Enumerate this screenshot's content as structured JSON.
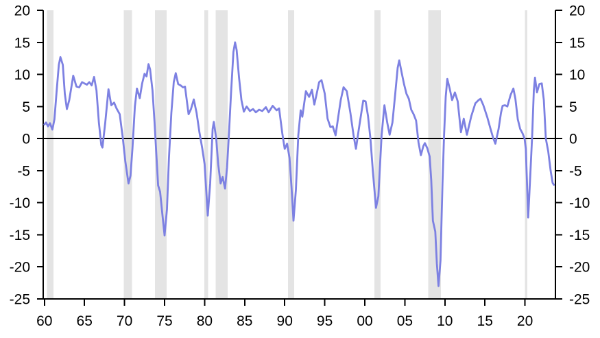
{
  "chart_data": {
    "type": "line",
    "title": "",
    "xlabel": "",
    "ylabel": "",
    "grid": "off",
    "legend": "none",
    "zero_line": true,
    "colors": {
      "line": "#7d81e2",
      "recession_band": "#e4e4e4",
      "axis": "#000000",
      "background": "#ffffff"
    },
    "x_axis": {
      "range": [
        1959.85,
        2023.8
      ],
      "ticks": [
        {
          "value": 1960,
          "label": "60"
        },
        {
          "value": 1965,
          "label": "65"
        },
        {
          "value": 1970,
          "label": "70"
        },
        {
          "value": 1975,
          "label": "75"
        },
        {
          "value": 1980,
          "label": "80"
        },
        {
          "value": 1985,
          "label": "85"
        },
        {
          "value": 1990,
          "label": "90"
        },
        {
          "value": 1995,
          "label": "95"
        },
        {
          "value": 2000,
          "label": "00"
        },
        {
          "value": 2005,
          "label": "05"
        },
        {
          "value": 2010,
          "label": "10"
        },
        {
          "value": 2015,
          "label": "15"
        },
        {
          "value": 2020,
          "label": "20"
        }
      ]
    },
    "y_axis": {
      "range": [
        -25,
        20
      ],
      "sides": [
        "left",
        "right"
      ],
      "ticks": [
        {
          "value": 20,
          "label": "20"
        },
        {
          "value": 15,
          "label": "15"
        },
        {
          "value": 10,
          "label": "10"
        },
        {
          "value": 5,
          "label": "5"
        },
        {
          "value": 0,
          "label": "0"
        },
        {
          "value": -5,
          "label": "-5"
        },
        {
          "value": -10,
          "label": "-10"
        },
        {
          "value": -15,
          "label": "-15"
        },
        {
          "value": -20,
          "label": "-20"
        },
        {
          "value": -25,
          "label": "-25"
        }
      ]
    },
    "recession_bands": [
      [
        1960.3,
        1961.15
      ],
      [
        1969.9,
        1970.95
      ],
      [
        1973.8,
        1975.25
      ],
      [
        1979.95,
        1980.45
      ],
      [
        1981.4,
        1982.9
      ],
      [
        1990.4,
        1991.2
      ],
      [
        2001.2,
        2001.95
      ],
      [
        2007.9,
        2009.5
      ],
      [
        2020.0,
        2020.3
      ]
    ],
    "series": [
      {
        "name": "value-pct-yoy",
        "color": "#7d81e2",
        "points": [
          [
            1960.0,
            2.2
          ],
          [
            1960.2,
            2.5
          ],
          [
            1960.45,
            1.9
          ],
          [
            1960.7,
            2.4
          ],
          [
            1961.0,
            1.4
          ],
          [
            1961.25,
            3.0
          ],
          [
            1961.5,
            7.0
          ],
          [
            1961.8,
            11.5
          ],
          [
            1962.0,
            12.7
          ],
          [
            1962.3,
            11.5
          ],
          [
            1962.55,
            7.0
          ],
          [
            1962.8,
            4.6
          ],
          [
            1963.1,
            6.0
          ],
          [
            1963.6,
            9.8
          ],
          [
            1964.0,
            8.1
          ],
          [
            1964.35,
            8.0
          ],
          [
            1964.7,
            8.8
          ],
          [
            1965.0,
            8.6
          ],
          [
            1965.3,
            8.4
          ],
          [
            1965.6,
            8.8
          ],
          [
            1965.9,
            8.3
          ],
          [
            1966.2,
            9.6
          ],
          [
            1966.5,
            7.5
          ],
          [
            1966.8,
            2.5
          ],
          [
            1967.1,
            -1.0
          ],
          [
            1967.25,
            -1.4
          ],
          [
            1967.6,
            2.5
          ],
          [
            1968.0,
            7.7
          ],
          [
            1968.35,
            5.2
          ],
          [
            1968.7,
            5.6
          ],
          [
            1969.0,
            4.7
          ],
          [
            1969.4,
            3.8
          ],
          [
            1969.8,
            0.0
          ],
          [
            1970.1,
            -3.5
          ],
          [
            1970.5,
            -7.0
          ],
          [
            1970.75,
            -5.8
          ],
          [
            1971.0,
            -1.5
          ],
          [
            1971.3,
            5.0
          ],
          [
            1971.55,
            7.8
          ],
          [
            1971.9,
            6.3
          ],
          [
            1972.2,
            8.6
          ],
          [
            1972.5,
            10.1
          ],
          [
            1972.75,
            9.7
          ],
          [
            1973.0,
            11.6
          ],
          [
            1973.2,
            10.8
          ],
          [
            1973.5,
            7.5
          ],
          [
            1973.75,
            2.5
          ],
          [
            1974.0,
            -3.0
          ],
          [
            1974.2,
            -7.3
          ],
          [
            1974.45,
            -8.3
          ],
          [
            1974.7,
            -11.5
          ],
          [
            1975.0,
            -15.1
          ],
          [
            1975.3,
            -11.0
          ],
          [
            1975.55,
            -3.0
          ],
          [
            1975.85,
            4.0
          ],
          [
            1976.15,
            8.8
          ],
          [
            1976.4,
            10.2
          ],
          [
            1976.7,
            8.5
          ],
          [
            1977.0,
            8.3
          ],
          [
            1977.3,
            8.0
          ],
          [
            1977.55,
            8.1
          ],
          [
            1978.0,
            3.8
          ],
          [
            1978.3,
            4.6
          ],
          [
            1978.65,
            6.1
          ],
          [
            1979.0,
            4.0
          ],
          [
            1979.35,
            1.0
          ],
          [
            1979.7,
            -1.5
          ],
          [
            1980.0,
            -4.0
          ],
          [
            1980.4,
            -12.0
          ],
          [
            1980.7,
            -7.0
          ],
          [
            1981.0,
            1.5
          ],
          [
            1981.15,
            2.6
          ],
          [
            1981.45,
            0.0
          ],
          [
            1981.7,
            -4.0
          ],
          [
            1982.0,
            -7.0
          ],
          [
            1982.25,
            -6.0
          ],
          [
            1982.55,
            -7.8
          ],
          [
            1982.8,
            -4.5
          ],
          [
            1983.05,
            1.0
          ],
          [
            1983.3,
            7.0
          ],
          [
            1983.6,
            13.5
          ],
          [
            1983.8,
            15.0
          ],
          [
            1984.0,
            13.8
          ],
          [
            1984.3,
            9.5
          ],
          [
            1984.6,
            6.0
          ],
          [
            1984.9,
            4.2
          ],
          [
            1985.25,
            5.0
          ],
          [
            1985.65,
            4.3
          ],
          [
            1986.05,
            4.6
          ],
          [
            1986.4,
            4.1
          ],
          [
            1986.8,
            4.5
          ],
          [
            1987.2,
            4.3
          ],
          [
            1987.65,
            4.9
          ],
          [
            1988.0,
            4.1
          ],
          [
            1988.5,
            5.1
          ],
          [
            1989.0,
            4.4
          ],
          [
            1989.3,
            4.7
          ],
          [
            1989.7,
            0.8
          ],
          [
            1990.0,
            -1.6
          ],
          [
            1990.3,
            -0.8
          ],
          [
            1990.6,
            -3.0
          ],
          [
            1990.85,
            -7.5
          ],
          [
            1991.1,
            -12.8
          ],
          [
            1991.4,
            -8.0
          ],
          [
            1991.7,
            0.5
          ],
          [
            1992.0,
            4.4
          ],
          [
            1992.2,
            3.4
          ],
          [
            1992.65,
            7.4
          ],
          [
            1993.05,
            6.5
          ],
          [
            1993.4,
            7.6
          ],
          [
            1993.7,
            5.3
          ],
          [
            1994.0,
            7.0
          ],
          [
            1994.3,
            8.8
          ],
          [
            1994.6,
            9.1
          ],
          [
            1995.0,
            7.0
          ],
          [
            1995.35,
            3.1
          ],
          [
            1995.7,
            1.8
          ],
          [
            1996.0,
            1.9
          ],
          [
            1996.35,
            0.5
          ],
          [
            1996.7,
            3.5
          ],
          [
            1997.0,
            6.0
          ],
          [
            1997.35,
            8.0
          ],
          [
            1997.75,
            7.4
          ],
          [
            1998.2,
            4.0
          ],
          [
            1998.6,
            0.5
          ],
          [
            1998.9,
            -1.6
          ],
          [
            1999.2,
            1.0
          ],
          [
            1999.5,
            3.5
          ],
          [
            1999.8,
            5.9
          ],
          [
            2000.1,
            5.8
          ],
          [
            2000.4,
            3.5
          ],
          [
            2000.7,
            0.0
          ],
          [
            2001.0,
            -5.0
          ],
          [
            2001.4,
            -10.8
          ],
          [
            2001.7,
            -9.0
          ],
          [
            2002.1,
            0.5
          ],
          [
            2002.45,
            5.2
          ],
          [
            2002.8,
            2.5
          ],
          [
            2003.1,
            0.6
          ],
          [
            2003.45,
            2.5
          ],
          [
            2003.8,
            7.0
          ],
          [
            2004.1,
            11.0
          ],
          [
            2004.3,
            12.2
          ],
          [
            2004.6,
            10.3
          ],
          [
            2004.9,
            8.5
          ],
          [
            2005.2,
            7.0
          ],
          [
            2005.5,
            6.2
          ],
          [
            2005.8,
            4.5
          ],
          [
            2006.1,
            3.8
          ],
          [
            2006.4,
            2.8
          ],
          [
            2006.7,
            -0.6
          ],
          [
            2007.0,
            -2.6
          ],
          [
            2007.3,
            -1.2
          ],
          [
            2007.5,
            -0.7
          ],
          [
            2007.8,
            -1.5
          ],
          [
            2008.1,
            -2.8
          ],
          [
            2008.3,
            -6.5
          ],
          [
            2008.5,
            -12.8
          ],
          [
            2008.8,
            -14.5
          ],
          [
            2009.0,
            -19.5
          ],
          [
            2009.2,
            -23.0
          ],
          [
            2009.45,
            -19.0
          ],
          [
            2009.7,
            -7.0
          ],
          [
            2009.9,
            0.5
          ],
          [
            2010.1,
            6.5
          ],
          [
            2010.3,
            9.3
          ],
          [
            2010.6,
            7.8
          ],
          [
            2010.9,
            6.0
          ],
          [
            2011.25,
            7.2
          ],
          [
            2011.6,
            5.8
          ],
          [
            2012.0,
            1.0
          ],
          [
            2012.35,
            3.1
          ],
          [
            2012.75,
            0.6
          ],
          [
            2013.3,
            3.5
          ],
          [
            2013.8,
            5.5
          ],
          [
            2014.2,
            6.0
          ],
          [
            2014.45,
            6.2
          ],
          [
            2014.8,
            5.2
          ],
          [
            2015.3,
            3.3
          ],
          [
            2015.7,
            1.5
          ],
          [
            2016.0,
            0.2
          ],
          [
            2016.3,
            -0.8
          ],
          [
            2016.7,
            1.5
          ],
          [
            2017.0,
            4.0
          ],
          [
            2017.2,
            5.1
          ],
          [
            2017.5,
            5.2
          ],
          [
            2017.8,
            5.0
          ],
          [
            2018.2,
            6.8
          ],
          [
            2018.55,
            7.8
          ],
          [
            2018.8,
            6.2
          ],
          [
            2019.1,
            3.0
          ],
          [
            2019.4,
            1.5
          ],
          [
            2019.7,
            0.8
          ],
          [
            2019.95,
            0.0
          ],
          [
            2020.1,
            -1.6
          ],
          [
            2020.4,
            -12.3
          ],
          [
            2020.65,
            -6.0
          ],
          [
            2020.9,
            0.5
          ],
          [
            2021.1,
            7.5
          ],
          [
            2021.25,
            9.5
          ],
          [
            2021.5,
            7.2
          ],
          [
            2021.8,
            8.5
          ],
          [
            2022.1,
            8.6
          ],
          [
            2022.35,
            6.0
          ],
          [
            2022.6,
            0.0
          ],
          [
            2022.9,
            -2.0
          ],
          [
            2023.2,
            -5.0
          ],
          [
            2023.45,
            -6.9
          ],
          [
            2023.6,
            -7.2
          ]
        ]
      }
    ]
  }
}
